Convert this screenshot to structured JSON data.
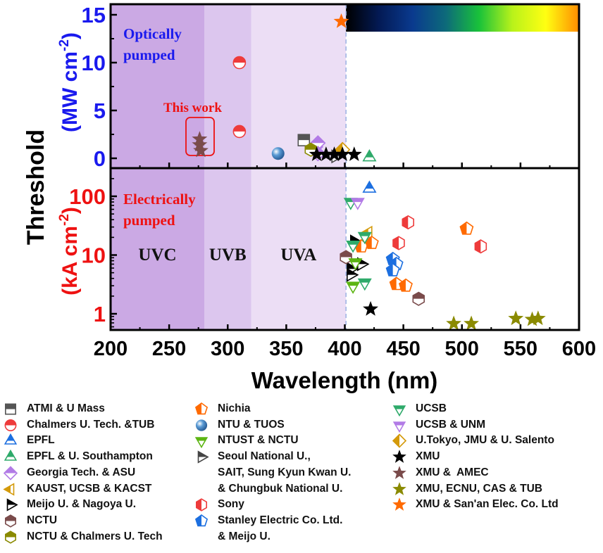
{
  "chart_data": {
    "type": "scatter",
    "xlabel": "Wavelength (nm)",
    "ylabel": "Threshold",
    "x_range": [
      200,
      600
    ],
    "x_ticks": [
      200,
      250,
      300,
      350,
      400,
      450,
      500,
      550,
      600
    ],
    "grid": false,
    "panels": [
      {
        "name": "optically-pumped",
        "label": "Optically\npumped",
        "unit_label": "(MW cm",
        "unit_sup": "-2",
        "unit_close": ")",
        "scale": "linear",
        "y_range": [
          -0.5,
          16
        ],
        "y_ticks": [
          0,
          5,
          10,
          15
        ],
        "annotation": "This work"
      },
      {
        "name": "electrically-pumped",
        "label": "Electrically\npumped",
        "unit_label": "(kA cm",
        "unit_sup": "-2",
        "unit_close": ")",
        "scale": "log",
        "y_range": [
          0.53,
          300
        ],
        "y_ticks": [
          1,
          10,
          100
        ]
      }
    ],
    "bands": [
      {
        "name": "UVC",
        "from": 200,
        "to": 280,
        "color": "#cba9e4"
      },
      {
        "name": "UVB",
        "from": 280,
        "to": 320,
        "color": "#dcc6ee"
      },
      {
        "name": "UVA",
        "from": 320,
        "to": 401,
        "color": "#ecdef5"
      }
    ],
    "visible_boundary_nm": 401,
    "spectrum_bar": {
      "from": 401,
      "to": 600,
      "colors": [
        "#000000",
        "#031a55",
        "#0a3a8e",
        "#0d6a7a",
        "#19c23a",
        "#b9f21a",
        "#ffff12",
        "#ff8c00"
      ]
    },
    "series": [
      {
        "name": "ATMI & U Mass",
        "marker": "square-half",
        "color": "#555555",
        "optical": [
          [
            365,
            1.9
          ]
        ],
        "electrical": []
      },
      {
        "name": "Chalmers U. Tech. &TUB",
        "marker": "circle-half",
        "color": "#ee3b3b",
        "optical": [
          [
            310,
            10.0
          ],
          [
            310,
            2.8
          ]
        ],
        "electrical": []
      },
      {
        "name": "EPFL",
        "marker": "triangle-up-half",
        "color": "#1c6fe0",
        "optical": [],
        "electrical": [
          [
            421,
            135
          ]
        ]
      },
      {
        "name": "EPFL & U. Southampton",
        "marker": "triangle-up-half",
        "color": "#2eaa6a",
        "optical": [
          [
            421,
            0.1
          ]
        ],
        "electrical": []
      },
      {
        "name": "Georgia Tech. & ASU",
        "marker": "diamond-half",
        "color": "#b27be6",
        "optical": [
          [
            375,
            1.2
          ],
          [
            377,
            1.6
          ],
          [
            377,
            0.5
          ]
        ],
        "electrical": []
      },
      {
        "name": "KAUST, UCSB & KACST",
        "marker": "triangle-left-half",
        "color": "#d49a0a",
        "optical": [],
        "electrical": [
          [
            420,
            24
          ]
        ]
      },
      {
        "name": "Meijo U. & Nagoya U.",
        "marker": "triangle-right-half",
        "color": "#000000",
        "optical": [],
        "electrical": [
          [
            408,
            17
          ],
          [
            414,
            7
          ],
          [
            405,
            5.8
          ],
          [
            405,
            4.6
          ]
        ]
      },
      {
        "name": "NCTU",
        "marker": "hexagon-half",
        "color": "#7a4b4b",
        "optical": [],
        "electrical": [
          [
            401,
            9.2
          ],
          [
            463,
            1.8
          ]
        ]
      },
      {
        "name": "NCTU & Chalmers U. Tech",
        "marker": "hexagon-half",
        "color": "#8a8a00",
        "optical": [
          [
            371,
            0.9
          ]
        ],
        "electrical": []
      },
      {
        "name": "Nichia",
        "marker": "pentagon-half",
        "color": "#ff6a00",
        "optical": [],
        "electrical": [
          [
            414,
            14
          ],
          [
            423,
            16
          ],
          [
            444,
            3.2
          ],
          [
            452,
            3.0
          ],
          [
            504,
            28
          ]
        ]
      },
      {
        "name": "NTU & TUOS",
        "marker": "sphere",
        "color": "#5b9bd5",
        "optical": [
          [
            343,
            0.5
          ]
        ],
        "electrical": []
      },
      {
        "name": "NTUST & NCTU",
        "marker": "triangle-down-half",
        "color": "#5cb512",
        "optical": [],
        "electrical": [
          [
            409,
            7.5
          ],
          [
            407,
            3.0
          ]
        ]
      },
      {
        "name": "Seoul National U., SAIT, Sung Kyun Kwan U. & Chungbuk National U.",
        "marker": "triangle-right-half",
        "color": "#444444",
        "optical": [
          [
            392,
            0.2
          ]
        ],
        "electrical": []
      },
      {
        "name": "Sony",
        "marker": "hexagon-vhalf",
        "color": "#ee3b3b",
        "optical": [],
        "electrical": [
          [
            454,
            36
          ],
          [
            446,
            16
          ],
          [
            516,
            14
          ]
        ]
      },
      {
        "name": "Stanley Electric Co. Ltd. & Meijo U.",
        "marker": "pentagon-half",
        "color": "#1c6fe0",
        "optical": [],
        "electrical": [
          [
            441,
            8.5
          ],
          [
            444,
            7.0
          ],
          [
            441,
            5.5
          ]
        ]
      },
      {
        "name": "UCSB",
        "marker": "triangle-down-half",
        "color": "#2eaa6a",
        "optical": [],
        "electrical": [
          [
            405,
            80
          ],
          [
            407,
            15
          ],
          [
            417,
            21
          ],
          [
            417,
            3.4
          ]
        ]
      },
      {
        "name": "UCSB & UNM",
        "marker": "triangle-down-half",
        "color": "#b27be6",
        "optical": [],
        "electrical": [
          [
            411,
            80
          ]
        ]
      },
      {
        "name": "U.Tokyo, JMU & U. Salento",
        "marker": "diamond-vhalf",
        "color": "#d49a0a",
        "optical": [
          [
            398,
            0.9
          ]
        ],
        "electrical": []
      },
      {
        "name": "XMU",
        "marker": "star",
        "color": "#000000",
        "optical": [
          [
            376,
            0.4
          ],
          [
            384,
            0.4
          ],
          [
            391,
            0.4
          ],
          [
            398,
            0.4
          ],
          [
            408,
            0.4
          ]
        ],
        "electrical": [
          [
            422,
            1.2
          ]
        ]
      },
      {
        "name": "XMU &  AMEC",
        "marker": "star",
        "color": "#7a4b4b",
        "optical": [
          [
            276,
            2.0
          ],
          [
            276,
            1.4
          ],
          [
            277,
            0.8
          ]
        ],
        "electrical": []
      },
      {
        "name": "XMU, ECNU, CAS & TUB",
        "marker": "star",
        "color": "#8a8a00",
        "optical": [],
        "electrical": [
          [
            493,
            0.68
          ],
          [
            508,
            0.68
          ],
          [
            546,
            0.83
          ],
          [
            560,
            0.8
          ],
          [
            565,
            0.83
          ]
        ]
      },
      {
        "name": "XMU & San'an Elec. Co. Ltd",
        "marker": "star",
        "color": "#ff6a00",
        "optical": [
          [
            397,
            14.3
          ]
        ],
        "electrical": []
      }
    ]
  },
  "legend": {
    "columns": [
      [
        {
          "label": "ATMI & U Mass",
          "series": 0
        },
        {
          "label": "Chalmers U. Tech. &TUB",
          "series": 1
        },
        {
          "label": "EPFL",
          "series": 2
        },
        {
          "label": "EPFL & U. Southampton",
          "series": 3
        },
        {
          "label": "Georgia Tech. & ASU",
          "series": 4
        },
        {
          "label": "KAUST, UCSB & KACST",
          "series": 5
        },
        {
          "label": "Meijo U. & Nagoya U.",
          "series": 6
        },
        {
          "label": "NCTU",
          "series": 7
        },
        {
          "label": "NCTU & Chalmers U. Tech",
          "series": 8
        }
      ],
      [
        {
          "label": "Nichia",
          "series": 9
        },
        {
          "label": "NTU & TUOS",
          "series": 10
        },
        {
          "label": "NTUST & NCTU",
          "series": 11
        },
        {
          "label": "Seoul National U.,\nSAIT, Sung Kyun Kwan U.\n& Chungbuk National U.",
          "series": 12
        },
        {
          "label": "Sony",
          "series": 13
        },
        {
          "label": "Stanley Electric Co. Ltd.\n& Meijo U.",
          "series": 14
        }
      ],
      [
        {
          "label": "UCSB",
          "series": 15
        },
        {
          "label": "UCSB & UNM",
          "series": 16
        },
        {
          "label": "U.Tokyo, JMU & U. Salento",
          "series": 17
        },
        {
          "label": "XMU",
          "series": 18
        },
        {
          "label": "XMU &  AMEC",
          "series": 19
        },
        {
          "label": "XMU, ECNU, CAS & TUB",
          "series": 20
        },
        {
          "label": "XMU & San'an Elec. Co. Ltd",
          "series": 21
        }
      ]
    ]
  }
}
